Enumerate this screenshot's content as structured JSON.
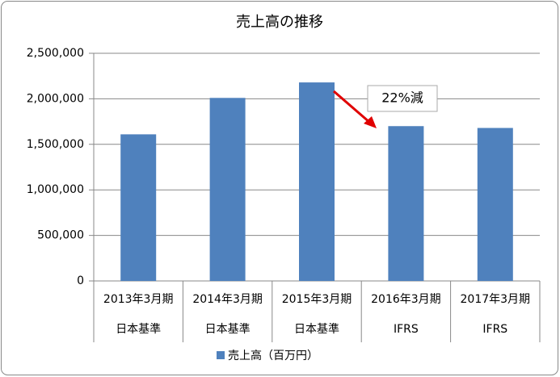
{
  "chart_data": {
    "type": "bar",
    "title": "売上高の推移",
    "categories": [
      "2013年3月期",
      "2014年3月期",
      "2015年3月期",
      "2016年3月期",
      "2017年3月期"
    ],
    "category_standards": [
      "日本基準",
      "日本基準",
      "日本基準",
      "IFRS",
      "IFRS"
    ],
    "series": [
      {
        "name": "売上高（百万円）",
        "color": "#4f81bd",
        "values": [
          1610000,
          2010000,
          2180000,
          1700000,
          1680000
        ]
      }
    ],
    "ylim": [
      0,
      2500000
    ],
    "yticks": [
      0,
      {
        "value": 500000,
        "label": "500,000"
      },
      {
        "value": 1000000,
        "label": "1,000,000"
      },
      {
        "value": 1500000,
        "label": "1,500,000"
      },
      {
        "value": 2000000,
        "label": "2,000,000"
      },
      {
        "value": 2500000,
        "label": "2,500,000"
      }
    ],
    "grid": true,
    "annotation": "22%減",
    "legend": "bottom"
  }
}
